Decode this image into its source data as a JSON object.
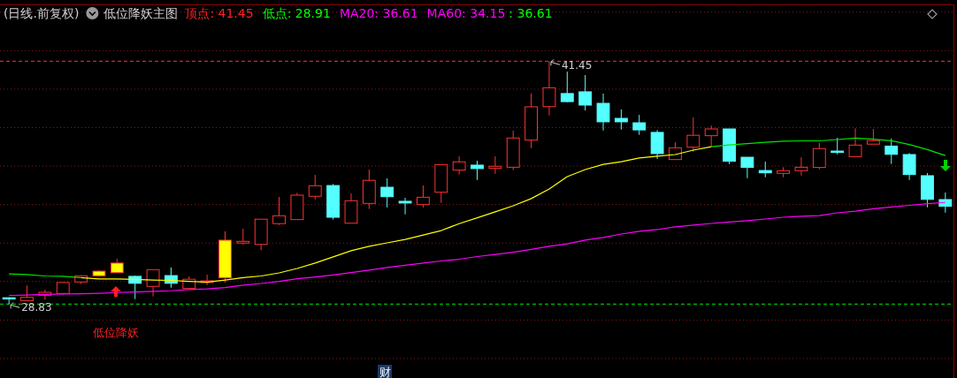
{
  "chart_data": {
    "type": "candlestick",
    "title": "(日线.前复权)",
    "subtitle": "低位降妖主图",
    "categories": [
      null,
      null,
      null,
      null,
      null,
      null,
      null,
      null,
      null,
      null,
      null,
      null,
      null,
      null,
      null,
      null,
      null,
      null,
      null,
      null,
      null,
      null,
      null,
      null,
      null,
      null,
      null,
      null,
      null,
      null,
      null,
      null,
      null,
      null,
      null,
      null,
      null,
      null,
      null,
      null,
      null,
      null,
      null,
      null,
      null,
      null,
      null,
      null,
      null,
      null,
      null,
      null,
      null
    ],
    "ohlc": [
      [
        29.16,
        29.18,
        28.83,
        29.12
      ],
      [
        29.0,
        29.79,
        28.99,
        29.18
      ],
      [
        29.29,
        29.58,
        29.06,
        29.44
      ],
      [
        29.38,
        29.97,
        29.32,
        29.95
      ],
      [
        29.98,
        30.32,
        29.87,
        30.3
      ],
      [
        30.3,
        30.59,
        30.25,
        30.54
      ],
      [
        30.46,
        31.18,
        30.46,
        30.96
      ],
      [
        30.27,
        30.31,
        29.09,
        29.91
      ],
      [
        29.75,
        30.62,
        29.23,
        30.62
      ],
      [
        30.31,
        30.73,
        29.68,
        29.91
      ],
      [
        29.64,
        30.27,
        29.64,
        30.12
      ],
      [
        29.95,
        30.36,
        29.82,
        30.04
      ],
      [
        30.19,
        32.61,
        29.95,
        32.15
      ],
      [
        32.0,
        32.74,
        31.91,
        32.09
      ],
      [
        31.93,
        33.24,
        31.63,
        33.24
      ],
      [
        33.01,
        34.4,
        32.94,
        33.42
      ],
      [
        33.22,
        34.61,
        33.22,
        34.49
      ],
      [
        34.43,
        35.54,
        34.27,
        34.98
      ],
      [
        34.99,
        35.07,
        33.22,
        33.34
      ],
      [
        33.03,
        34.58,
        33.03,
        34.2
      ],
      [
        34.06,
        35.82,
        33.77,
        35.26
      ],
      [
        34.9,
        35.36,
        33.85,
        34.41
      ],
      [
        34.17,
        34.35,
        33.49,
        34.08
      ],
      [
        34.0,
        34.99,
        33.85,
        34.38
      ],
      [
        34.64,
        36.08,
        34.09,
        36.08
      ],
      [
        35.79,
        36.51,
        35.56,
        36.22
      ],
      [
        36.05,
        36.28,
        35.28,
        35.87
      ],
      [
        35.88,
        36.51,
        35.6,
        35.99
      ],
      [
        35.94,
        37.84,
        35.79,
        37.46
      ],
      [
        37.35,
        39.77,
        36.93,
        39.08
      ],
      [
        39.09,
        41.45,
        38.63,
        40.07
      ],
      [
        39.77,
        40.91,
        39.32,
        39.35
      ],
      [
        39.86,
        40.73,
        38.89,
        39.17
      ],
      [
        39.26,
        39.77,
        37.85,
        38.3
      ],
      [
        38.48,
        38.94,
        37.9,
        38.3
      ],
      [
        38.25,
        38.66,
        37.62,
        37.88
      ],
      [
        37.75,
        37.87,
        36.37,
        36.65
      ],
      [
        36.34,
        37.24,
        36.34,
        36.95
      ],
      [
        36.98,
        38.53,
        36.75,
        37.6
      ],
      [
        37.58,
        38.11,
        37.01,
        37.93
      ],
      [
        37.93,
        37.93,
        36.11,
        36.25
      ],
      [
        36.46,
        36.46,
        35.37,
        35.93
      ],
      [
        35.77,
        36.23,
        35.42,
        35.65
      ],
      [
        35.62,
        35.94,
        35.42,
        35.76
      ],
      [
        35.76,
        36.46,
        35.51,
        35.94
      ],
      [
        35.93,
        37.2,
        35.83,
        36.91
      ],
      [
        36.78,
        37.47,
        36.61,
        36.71
      ],
      [
        36.49,
        37.96,
        36.49,
        37.09
      ],
      [
        37.14,
        37.93,
        37.14,
        37.32
      ],
      [
        37.04,
        37.43,
        36.11,
        36.61
      ],
      [
        36.6,
        36.68,
        35.28,
        35.56
      ],
      [
        35.5,
        35.64,
        33.86,
        34.27
      ],
      [
        34.26,
        34.63,
        33.58,
        33.91
      ]
    ],
    "colors": [
      "#54ffff",
      "#ff3232",
      "#ff3232",
      "#ff3232",
      "#ff3232",
      "#ffff00",
      "#ffff00",
      "#54ffff",
      "#ff3232",
      "#54ffff",
      "#ff3232",
      "#ff3232",
      "#ffff00",
      "#ff3232",
      "#ff3232",
      "#ff3232",
      "#ff3232",
      "#ff3232",
      "#54ffff",
      "#ff3232",
      "#ff3232",
      "#54ffff",
      "#54ffff",
      "#ff3232",
      "#ff3232",
      "#ff3232",
      "#54ffff",
      "#ff3232",
      "#ff3232",
      "#ff3232",
      "#ff3232",
      "#54ffff",
      "#54ffff",
      "#54ffff",
      "#54ffff",
      "#54ffff",
      "#54ffff",
      "#ff3232",
      "#ff3232",
      "#ff3232",
      "#54ffff",
      "#54ffff",
      "#54ffff",
      "#ff3232",
      "#ff3232",
      "#ff3232",
      "#54ffff",
      "#ff3232",
      "#ff3232",
      "#54ffff",
      "#54ffff",
      "#54ffff",
      "#54ffff"
    ],
    "series": [
      {
        "type": "line",
        "color": "#00e600",
        "values": [
          30.4,
          30.36,
          30.29,
          30.27,
          30.2,
          null,
          null,
          null,
          null,
          null,
          null,
          null,
          null,
          null,
          null,
          null,
          null,
          null,
          null,
          null,
          null,
          null,
          null,
          null,
          null,
          null,
          null,
          null,
          null,
          null,
          null,
          null,
          null,
          null,
          null,
          null,
          null,
          null,
          null,
          null,
          null,
          null,
          null,
          null,
          null,
          null,
          null,
          null,
          null,
          null,
          null,
          null,
          null
        ]
      },
      {
        "type": "line",
        "color": "#ffff00",
        "values": [
          null,
          null,
          null,
          null,
          30.2,
          30.13,
          30.13,
          30.11,
          30.08,
          30.06,
          30.01,
          29.97,
          30.08,
          30.2,
          30.29,
          30.45,
          30.68,
          30.96,
          31.28,
          31.6,
          31.83,
          32.01,
          32.19,
          32.42,
          32.65,
          33.01,
          33.31,
          33.62,
          33.94,
          34.31,
          34.81,
          35.45,
          35.82,
          36.09,
          36.23,
          36.42,
          36.51,
          36.6,
          36.83,
          37.01,
          null,
          null,
          null,
          null,
          null,
          null,
          null,
          null,
          null,
          null,
          null,
          null,
          null
        ]
      },
      {
        "type": "line",
        "color": "#00e600",
        "values": [
          null,
          null,
          null,
          null,
          null,
          null,
          null,
          null,
          null,
          null,
          null,
          null,
          null,
          null,
          null,
          null,
          null,
          null,
          null,
          null,
          null,
          null,
          null,
          null,
          null,
          null,
          null,
          null,
          null,
          null,
          null,
          null,
          null,
          null,
          null,
          null,
          null,
          null,
          null,
          37.01,
          37.1,
          37.17,
          37.24,
          37.29,
          37.31,
          37.31,
          37.38,
          37.45,
          37.4,
          37.32,
          37.12,
          36.86,
          36.55
        ]
      },
      {
        "type": "line",
        "color": "#ff00ff",
        "values": [
          29.28,
          29.3,
          29.33,
          29.35,
          29.37,
          29.39,
          29.43,
          29.46,
          29.49,
          29.52,
          29.58,
          29.62,
          29.69,
          29.81,
          29.9,
          30.01,
          30.15,
          30.24,
          30.34,
          30.47,
          30.59,
          30.73,
          30.85,
          30.96,
          31.07,
          31.16,
          31.3,
          31.41,
          31.52,
          31.67,
          31.83,
          31.96,
          32.15,
          32.29,
          32.47,
          32.61,
          32.7,
          32.84,
          32.93,
          33.02,
          33.09,
          33.16,
          33.25,
          33.34,
          33.39,
          33.43,
          33.57,
          33.66,
          33.78,
          33.87,
          33.96,
          34.05,
          34.11
        ]
      }
    ],
    "ref_lines": [
      {
        "axis": "y",
        "value": 41.45,
        "color": "#ff3232",
        "line_style": "dashed"
      },
      {
        "axis": "y",
        "value": 28.83,
        "color": "#00e600",
        "line_style": "dashed"
      }
    ],
    "annotations": [
      "顶点: 41.45",
      "低点: 28.91",
      "MA20: 36.61",
      "MA60: 34.15",
      ": 36.61",
      {
        "text": "41.45",
        "y": 41.45
      },
      {
        "text": "28.83",
        "y": 28.83
      },
      "低位降妖",
      "财"
    ],
    "yticks": [
      {
        "value": 44,
        "label": null
      },
      {
        "value": 42,
        "label": null
      },
      {
        "value": 40,
        "label": null
      },
      {
        "value": 38,
        "label": null
      },
      {
        "value": 36,
        "label": null
      },
      {
        "value": 34,
        "label": null
      },
      {
        "value": 32,
        "label": null
      },
      {
        "value": 30,
        "label": null
      },
      {
        "value": 28,
        "label": null
      },
      {
        "value": 26,
        "label": null
      }
    ],
    "grid": "y"
  }
}
